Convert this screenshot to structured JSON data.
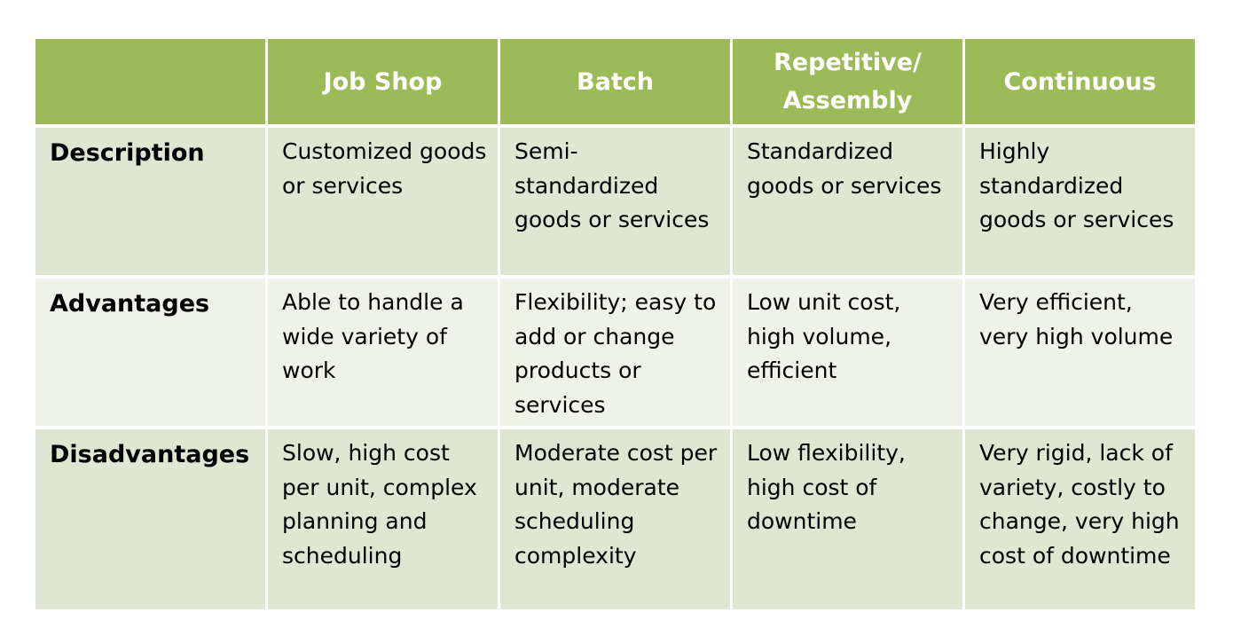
{
  "table": {
    "header": {
      "corner": "",
      "columns": [
        "Job Shop",
        "Batch",
        "Repetitive/ Assembly",
        "Continuous"
      ]
    },
    "rows": [
      {
        "label": "Description",
        "cells": [
          "Customized goods or services",
          "Semi-standardized goods or services",
          "Standardized goods or services",
          "Highly standardized goods or services"
        ]
      },
      {
        "label": "Advantages",
        "cells": [
          "Able to handle a wide variety of work",
          "Flexibility; easy to add or change products or services",
          "Low unit cost, high volume, efficient",
          "Very efficient, very high volume"
        ]
      },
      {
        "label": "Disadvantages",
        "cells": [
          "Slow, high cost per unit, complex planning and scheduling",
          "Moderate cost per unit, moderate scheduling complexity",
          "Low flexibility, high cost of downtime",
          "Very rigid, lack of variety, costly to change, very high cost of downtime"
        ]
      }
    ],
    "colors": {
      "header_bg": "#9bbb59",
      "row_dark_bg": "#dfe6d1",
      "row_light_bg": "#eff2e9"
    }
  }
}
